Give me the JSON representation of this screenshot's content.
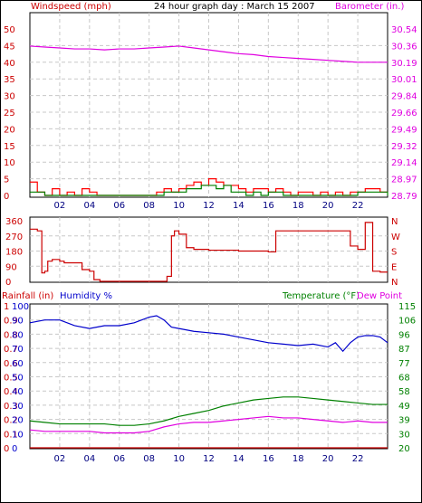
{
  "colors": {
    "wind": "#ff0000",
    "gust_fill": "#008000",
    "wind_blue": "#0000ff",
    "barometer": "#e000e0",
    "direction": "#cc0000",
    "rain": "#cc0000",
    "humidity": "#0000cc",
    "temperature": "#008000",
    "dewpoint": "#e000e0",
    "grid": "#c8c8c8",
    "frame": "#000000"
  },
  "header": {
    "windspeed_label": "Windspeed (mph)",
    "title": "24 hour graph day : March 15 2007",
    "barometer_label": "Barometer (in.)"
  },
  "lower_header": {
    "rainfall_label": "Rainfall (in)",
    "humidity_label": "Humidity %",
    "temperature_label": "Temperature (°F)",
    "dewpoint_label": "Dew Point"
  },
  "chart_data": [
    {
      "type": "line",
      "x_ticks": [
        "02",
        "04",
        "06",
        "08",
        "10",
        "12",
        "14",
        "16",
        "18",
        "20",
        "22"
      ],
      "left_axis": {
        "label": "Windspeed (mph)",
        "ticks": [
          "50",
          "45",
          "40",
          "35",
          "30",
          "25",
          "20",
          "15",
          "10",
          "5",
          "0"
        ],
        "ylim": [
          0,
          50
        ]
      },
      "right_axis": {
        "label": "Barometer (in.)",
        "ticks": [
          "30.54",
          "30.36",
          "30.19",
          "30.01",
          "29.84",
          "29.66",
          "29.49",
          "29.32",
          "29.14",
          "28.97",
          "28.79"
        ],
        "ylim": [
          28.79,
          30.54
        ]
      },
      "grid": true,
      "series": [
        {
          "name": "Barometer (in.)",
          "axis": "right",
          "x": [
            0,
            1,
            2,
            3,
            4,
            5,
            6,
            7,
            8,
            9,
            10,
            11,
            12,
            13,
            14,
            15,
            16,
            17,
            18,
            19,
            20,
            21,
            22,
            23,
            24
          ],
          "y": [
            30.36,
            30.35,
            30.34,
            30.33,
            30.33,
            30.32,
            30.33,
            30.33,
            30.34,
            30.35,
            30.36,
            30.34,
            30.32,
            30.3,
            30.28,
            30.27,
            30.25,
            30.24,
            30.23,
            30.22,
            30.21,
            30.2,
            30.19,
            30.19,
            30.19
          ]
        },
        {
          "name": "Windspeed (mph)",
          "axis": "left",
          "x": [
            0,
            0.5,
            1,
            1.5,
            2,
            2.5,
            3,
            3.5,
            4,
            4.5,
            5,
            5.5,
            6,
            6.5,
            7,
            7.5,
            8,
            8.5,
            9,
            9.5,
            10,
            10.5,
            11,
            11.5,
            12,
            12.5,
            13,
            13.5,
            14,
            14.5,
            15,
            15.5,
            16,
            16.5,
            17,
            17.5,
            18,
            18.5,
            19,
            19.5,
            20,
            20.5,
            21,
            21.5,
            22,
            22.5,
            23,
            23.5,
            24
          ],
          "y": [
            4,
            1,
            0,
            2,
            0,
            1,
            0,
            2,
            1,
            0,
            0,
            0,
            0,
            0,
            0,
            0,
            0,
            1,
            2,
            1,
            2,
            3,
            4,
            3,
            5,
            4,
            3,
            3,
            2,
            1,
            2,
            2,
            1,
            2,
            1,
            0,
            1,
            1,
            0,
            1,
            0,
            1,
            0,
            1,
            1,
            2,
            2,
            1,
            1
          ]
        },
        {
          "name": "Wind gust",
          "axis": "left",
          "x": [
            0,
            1,
            2,
            3,
            4,
            5,
            6,
            7,
            8,
            8.5,
            9,
            9.5,
            10,
            10.5,
            11,
            11.5,
            12,
            12.5,
            13,
            13.5,
            14,
            14.5,
            15,
            15.5,
            16,
            17,
            18,
            19,
            20,
            21,
            22,
            23,
            24
          ],
          "y": [
            1,
            0,
            0,
            0,
            0,
            0,
            0,
            0,
            0,
            0,
            1,
            1,
            1,
            2,
            2,
            3,
            3,
            2,
            3,
            1,
            1,
            0,
            1,
            0,
            1,
            0,
            0,
            0,
            0,
            0,
            1,
            1,
            0
          ]
        }
      ]
    },
    {
      "type": "line",
      "left_axis": {
        "ticks": [
          "360",
          "270",
          "180",
          "90",
          "0"
        ],
        "ylim": [
          0,
          360
        ]
      },
      "right_axis": {
        "ticks": [
          "N",
          "W",
          "S",
          "E",
          "N"
        ]
      },
      "series": [
        {
          "name": "Wind direction",
          "x": [
            0,
            0.5,
            0.8,
            1.0,
            1.2,
            1.5,
            2.0,
            2.3,
            2.6,
            3.0,
            3.5,
            4.0,
            4.3,
            4.7,
            5,
            6,
            7,
            8,
            9.2,
            9.5,
            9.7,
            10.0,
            10.5,
            11,
            12,
            13,
            14,
            15,
            16,
            16.5,
            17,
            18,
            19,
            20,
            21,
            21.5,
            22,
            22.5,
            23,
            23.5,
            24
          ],
          "y": [
            310,
            300,
            50,
            60,
            120,
            130,
            120,
            110,
            110,
            110,
            70,
            60,
            10,
            0,
            0,
            0,
            0,
            0,
            30,
            270,
            300,
            280,
            200,
            190,
            185,
            185,
            180,
            180,
            175,
            300,
            300,
            300,
            300,
            300,
            300,
            210,
            190,
            350,
            60,
            55,
            55
          ]
        }
      ]
    },
    {
      "type": "line",
      "left_axis": {
        "label": "Rainfall (in)",
        "ticks": [
          "1",
          "0.9",
          "0.8",
          "0.7",
          "0.6",
          "0.5",
          "0.4",
          "0.3",
          "0.2",
          "0.1",
          "0"
        ],
        "ylim": [
          0,
          1
        ]
      },
      "humidity_axis": {
        "label": "Humidity %",
        "ticks": [
          "100",
          "90",
          "80",
          "70",
          "60",
          "50",
          "40",
          "30",
          "20",
          "10",
          "0"
        ],
        "ylim": [
          0,
          100
        ]
      },
      "right_axis": {
        "label": "Temperature (°F)",
        "ticks": [
          "115",
          "106",
          "96",
          "87",
          "77",
          "68",
          "58",
          "49",
          "39",
          "30",
          "20"
        ],
        "ylim": [
          20,
          115
        ]
      },
      "series": [
        {
          "name": "Humidity %",
          "axis": "humidity",
          "x": [
            0,
            1,
            2,
            3,
            4,
            5,
            6,
            7,
            8,
            8.5,
            9,
            9.5,
            10,
            11,
            12,
            13,
            14,
            15,
            16,
            17,
            18,
            19,
            20,
            20.5,
            21,
            21.5,
            22,
            22.5,
            23,
            23.5,
            24
          ],
          "y": [
            88,
            90,
            90,
            86,
            84,
            86,
            86,
            88,
            92,
            93,
            90,
            85,
            84,
            82,
            81,
            80,
            78,
            76,
            74,
            73,
            72,
            73,
            71,
            74,
            68,
            74,
            78,
            79,
            79,
            78,
            74
          ]
        },
        {
          "name": "Temperature (°F)",
          "axis": "right",
          "x": [
            0,
            1,
            2,
            3,
            4,
            5,
            6,
            7,
            8,
            9,
            10,
            11,
            12,
            13,
            14,
            15,
            16,
            17,
            18,
            19,
            20,
            21,
            22,
            23,
            24
          ],
          "y": [
            38,
            37,
            36,
            36,
            36,
            36,
            35,
            35,
            36,
            38,
            41,
            43,
            45,
            48,
            50,
            52,
            53,
            54,
            54,
            53,
            52,
            51,
            50,
            49,
            49
          ]
        },
        {
          "name": "Dew Point",
          "axis": "right",
          "x": [
            0,
            1,
            2,
            3,
            4,
            5,
            6,
            7,
            8,
            9,
            10,
            11,
            12,
            13,
            14,
            15,
            16,
            17,
            18,
            19,
            20,
            21,
            22,
            23,
            24
          ],
          "y": [
            32,
            31,
            31,
            31,
            31,
            30,
            30,
            30,
            31,
            34,
            36,
            37,
            37,
            38,
            39,
            40,
            41,
            40,
            40,
            39,
            38,
            37,
            38,
            37,
            37
          ]
        },
        {
          "name": "Rainfall (in)",
          "axis": "left",
          "x": [
            0,
            24
          ],
          "y": [
            0,
            0
          ]
        }
      ]
    }
  ]
}
